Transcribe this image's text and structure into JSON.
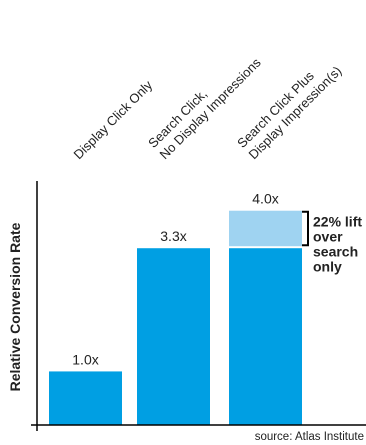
{
  "chart_data": {
    "type": "bar",
    "categories": [
      [
        "Display Click Only"
      ],
      [
        "Search Click,",
        "No Display Impressions"
      ],
      [
        "Search Click Plus",
        "Display Impression(s)"
      ]
    ],
    "values": [
      1.0,
      3.3,
      4.0
    ],
    "value_labels": [
      "1.0x",
      "3.3x",
      "4.0x"
    ],
    "stack": {
      "category_index": 2,
      "base_value": 3.3,
      "lift_value": 0.7
    },
    "ylabel": "Relative Conversion Rate",
    "ylim": [
      0,
      4.2
    ],
    "annotation": [
      "22% lift",
      "over",
      "search",
      "only"
    ],
    "source": "source:  Atlas Institute",
    "colors": {
      "bar": "#009fe3",
      "lift": "#9fd3f1",
      "axis": "#000000",
      "text": "#222222"
    }
  }
}
